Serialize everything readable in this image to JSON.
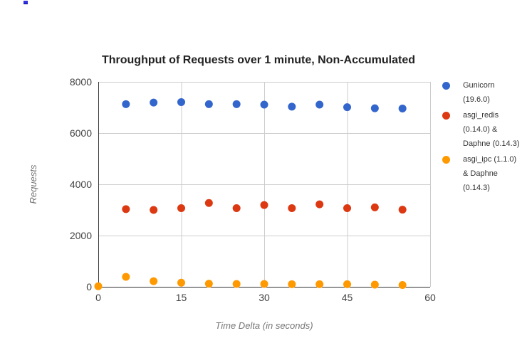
{
  "chart_data": {
    "type": "scatter",
    "title": "Throughput of Requests over 1 minute, Non-Accumulated",
    "xlabel": "Time Delta (in seconds)",
    "ylabel": "Requests",
    "xlim": [
      0,
      60
    ],
    "ylim": [
      0,
      8000
    ],
    "x_ticks": [
      0,
      15,
      30,
      45,
      60
    ],
    "y_ticks": [
      0,
      2000,
      4000,
      6000,
      8000
    ],
    "grid": true,
    "legend_position": "right",
    "axis_color": "#333333",
    "gridline_color": "#cccccc",
    "series": [
      {
        "name": "Gunicorn (19.6.0)",
        "color": "#3366CC",
        "points": [
          [
            5,
            7130
          ],
          [
            10,
            7190
          ],
          [
            15,
            7210
          ],
          [
            20,
            7130
          ],
          [
            25,
            7130
          ],
          [
            30,
            7110
          ],
          [
            35,
            7030
          ],
          [
            40,
            7110
          ],
          [
            45,
            7010
          ],
          [
            50,
            6970
          ],
          [
            55,
            6960
          ]
        ]
      },
      {
        "name": "asgi_redis (0.14.0) & Daphne (0.14.3)",
        "color": "#DC3912",
        "points": [
          [
            5,
            3030
          ],
          [
            10,
            3000
          ],
          [
            15,
            3070
          ],
          [
            20,
            3270
          ],
          [
            25,
            3070
          ],
          [
            30,
            3190
          ],
          [
            35,
            3070
          ],
          [
            40,
            3220
          ],
          [
            45,
            3070
          ],
          [
            50,
            3100
          ],
          [
            55,
            3010
          ]
        ]
      },
      {
        "name": "asgi_ipc (1.1.0) & Daphne (0.14.3)",
        "color": "#FF9900",
        "points": [
          [
            0,
            20
          ],
          [
            5,
            390
          ],
          [
            10,
            220
          ],
          [
            15,
            160
          ],
          [
            20,
            120
          ],
          [
            25,
            110
          ],
          [
            30,
            110
          ],
          [
            35,
            100
          ],
          [
            40,
            100
          ],
          [
            45,
            100
          ],
          [
            50,
            85
          ],
          [
            55,
            70
          ]
        ]
      }
    ]
  }
}
